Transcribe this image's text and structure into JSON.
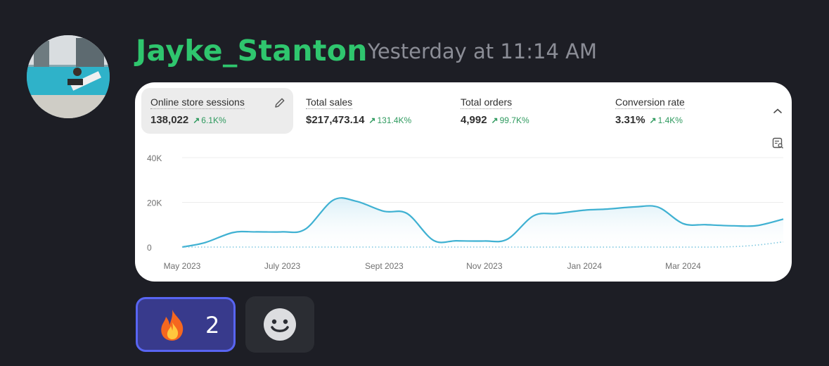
{
  "message": {
    "author": "Jayke_Stanton",
    "timestamp": "Yesterday at 11:14 AM",
    "author_color": "#2fc66e"
  },
  "metrics": [
    {
      "label": "Online store sessions",
      "value": "138,022",
      "change": "6.1K%",
      "selected": true
    },
    {
      "label": "Total sales",
      "value": "$217,473.14",
      "change": "131.4K%"
    },
    {
      "label": "Total orders",
      "value": "4,992",
      "change": "99.7K%"
    },
    {
      "label": "Conversion rate",
      "value": "3.31%",
      "change": "1.4K%"
    }
  ],
  "chart_data": {
    "type": "line",
    "title": "",
    "xlabel": "",
    "ylabel": "",
    "ylim": [
      0,
      40000
    ],
    "y_ticks": [
      "40K",
      "20K",
      "0"
    ],
    "x_ticks": [
      "May 2023",
      "July 2023",
      "Sept 2023",
      "Nov 2023",
      "Jan 2024",
      "Mar 2024"
    ],
    "grid": true,
    "series": [
      {
        "color": "#3fb1d2",
        "x": [
          "2023-05-01",
          "2023-05-15",
          "2023-06-01",
          "2023-06-15",
          "2023-07-01",
          "2023-07-15",
          "2023-08-01",
          "2023-08-15",
          "2023-09-01",
          "2023-09-15",
          "2023-10-01",
          "2023-10-15",
          "2023-11-01",
          "2023-11-15",
          "2023-12-01",
          "2023-12-15",
          "2024-01-01",
          "2024-01-15",
          "2024-02-01",
          "2024-02-15",
          "2024-03-01",
          "2024-03-15",
          "2024-04-01",
          "2024-04-15",
          "2024-05-01"
        ],
        "values": [
          0,
          2000,
          6500,
          6800,
          6800,
          8000,
          21000,
          20500,
          16000,
          15000,
          3000,
          2800,
          2700,
          3500,
          14000,
          15000,
          16500,
          17000,
          18000,
          17800,
          10500,
          10000,
          9500,
          9600,
          12500
        ]
      },
      {
        "style": "dotted",
        "color": "#7fc7e0",
        "x": [
          "2023-05-01",
          "2023-08-01",
          "2023-11-01",
          "2024-02-01",
          "2024-04-01",
          "2024-05-01"
        ],
        "values": [
          0,
          0,
          0,
          0,
          200,
          2300
        ]
      }
    ]
  },
  "reactions": [
    {
      "emoji": "fire",
      "count": "2",
      "active": true
    }
  ],
  "add_reaction": {
    "icon": "smiley-icon"
  }
}
